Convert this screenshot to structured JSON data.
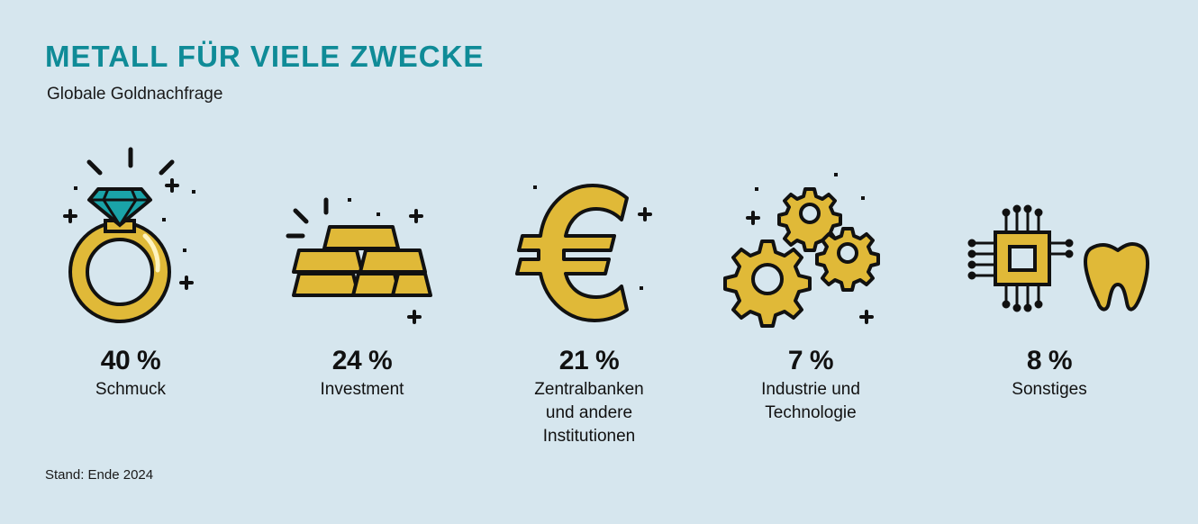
{
  "title": "METALL FÜR VIELE ZWECKE",
  "subtitle": "Globale Goldnachfrage",
  "footer": "Stand: Ende 2024",
  "colors": {
    "gold": "#e0b938",
    "teal": "#1aa3a8",
    "outline": "#111111",
    "heading": "#0f8b97",
    "background": "#d6e6ee"
  },
  "chart_data": {
    "type": "table",
    "title": "METALL FÜR VIELE ZWECKE",
    "subtitle": "Globale Goldnachfrage",
    "unit": "%",
    "categories": [
      {
        "label": "Schmuck",
        "value": 40,
        "value_text": "40 %",
        "icon": "ring-icon"
      },
      {
        "label": "Investment",
        "value": 24,
        "value_text": "24 %",
        "icon": "gold-bars-icon"
      },
      {
        "label": "Zentralbanken\nund andere\nInstitutionen",
        "value": 21,
        "value_text": "21 %",
        "icon": "euro-icon"
      },
      {
        "label": "Industrie und\nTechnologie",
        "value": 7,
        "value_text": "7 %",
        "icon": "gears-icon"
      },
      {
        "label": "Sonstiges",
        "value": 8,
        "value_text": "8 %",
        "icon": "chip-tooth-icon"
      }
    ]
  }
}
